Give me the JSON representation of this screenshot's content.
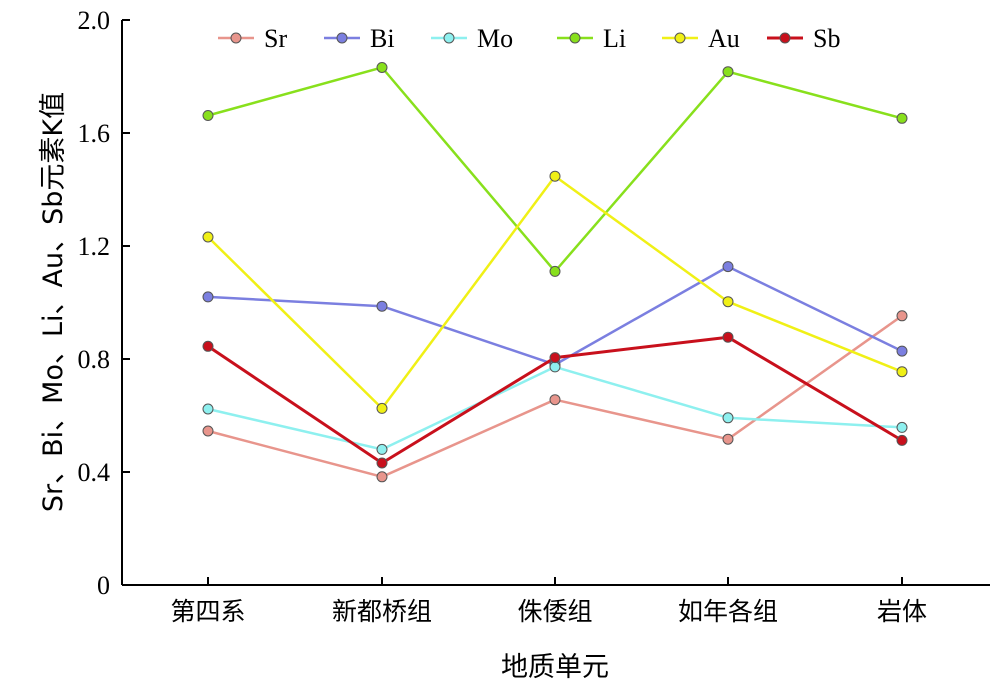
{
  "chart_data": {
    "type": "line",
    "categories": [
      "第四系",
      "新都桥组",
      "侏倭组",
      "如年各组",
      "岩体"
    ],
    "series": [
      {
        "name": "Sr",
        "color": "#e8958c",
        "values": [
          0.545,
          0.383,
          0.656,
          0.516,
          0.953
        ]
      },
      {
        "name": "Bi",
        "color": "#7b7fe0",
        "values": [
          1.02,
          0.987,
          0.78,
          1.127,
          0.828
        ]
      },
      {
        "name": "Mo",
        "color": "#8ef0ef",
        "values": [
          0.623,
          0.48,
          0.772,
          0.592,
          0.558
        ]
      },
      {
        "name": "Li",
        "color": "#88e01c",
        "values": [
          1.662,
          1.832,
          1.11,
          1.817,
          1.652
        ]
      },
      {
        "name": "Au",
        "color": "#f0f016",
        "values": [
          1.232,
          0.625,
          1.447,
          1.003,
          0.755
        ]
      },
      {
        "name": "Sb",
        "color": "#c8101c",
        "values": [
          0.845,
          0.432,
          0.805,
          0.877,
          0.512
        ]
      }
    ],
    "xlabel": "地质单元",
    "ylabel": "Sr、Bi、Mo、Li、Au、Sb元素K值",
    "ylim": [
      0,
      2.0
    ],
    "yticks": [
      "0",
      "0.4",
      "0.8",
      "1.2",
      "1.6",
      "2.0"
    ],
    "ytick_values": [
      0,
      0.4,
      0.8,
      1.2,
      1.6,
      2.0
    ],
    "grid": false,
    "legend_position": "top"
  }
}
